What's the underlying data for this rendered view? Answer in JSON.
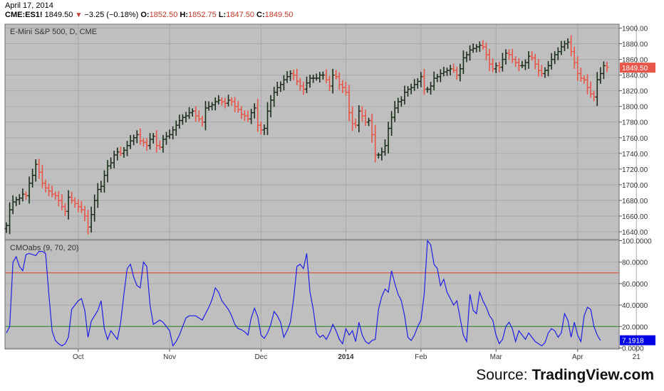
{
  "header": {
    "date": "April 17, 2014",
    "symbol": "CME:ES1!",
    "last": "1849.50",
    "change": "−3.25 (−0.18%)",
    "open_label": "O:",
    "open": "1852.50",
    "high_label": "H:",
    "high": "1852.75",
    "low_label": "L:",
    "low": "1847.50",
    "close_label": "C:",
    "close": "1849.50"
  },
  "source": {
    "prefix": "Source:",
    "brand": "TradingView.com"
  },
  "colors": {
    "up": "#1a2e1a",
    "down": "#e8564a",
    "cmo_line": "#1f1fe6",
    "overbought": "#d84b3d",
    "oversold": "#3a8a3a",
    "panel_bg": "#bfbfbf"
  },
  "chart_data": [
    {
      "type": "ohlc",
      "title": "E-Mini S&P 500, D, CME",
      "ylim": [
        1630,
        1905
      ],
      "y_ticks": [
        1640,
        1660,
        1680,
        1700,
        1720,
        1740,
        1760,
        1780,
        1800,
        1820,
        1840,
        1860,
        1880,
        1900
      ],
      "y_tick_labels": [
        "1640.00",
        "1660.00",
        "1680.00",
        "1700.00",
        "1720.00",
        "1740.00",
        "1760.00",
        "1780.00",
        "1800.00",
        "1820.00",
        "1840.00",
        "1860.00",
        "1880.00",
        "1900.00"
      ],
      "last_price_label": "1849.50",
      "last_price": 1849.5,
      "x_labels": [
        {
          "index": 22,
          "text": "Oct",
          "bold": false
        },
        {
          "index": 50,
          "text": "Nov",
          "bold": false
        },
        {
          "index": 78,
          "text": "Dec",
          "bold": false
        },
        {
          "index": 104,
          "text": "2014",
          "bold": true
        },
        {
          "index": 127,
          "text": "Feb",
          "bold": false
        },
        {
          "index": 150,
          "text": "Mar",
          "bold": false
        },
        {
          "index": 175,
          "text": "Apr",
          "bold": false
        },
        {
          "index": 193,
          "text": "21",
          "bold": false
        }
      ],
      "closes": [
        1648,
        1668,
        1678,
        1681,
        1683,
        1688,
        1686,
        1702,
        1712,
        1726,
        1716,
        1702,
        1696,
        1692,
        1688,
        1686,
        1680,
        1672,
        1666,
        1684,
        1680,
        1676,
        1672,
        1668,
        1660,
        1646,
        1662,
        1680,
        1694,
        1698,
        1712,
        1724,
        1728,
        1738,
        1742,
        1740,
        1744,
        1750,
        1756,
        1760,
        1764,
        1756,
        1754,
        1750,
        1758,
        1762,
        1750,
        1748,
        1758,
        1762,
        1764,
        1770,
        1776,
        1782,
        1786,
        1788,
        1792,
        1794,
        1788,
        1784,
        1780,
        1798,
        1800,
        1802,
        1806,
        1808,
        1806,
        1804,
        1808,
        1806,
        1800,
        1796,
        1790,
        1788,
        1784,
        1792,
        1798,
        1776,
        1770,
        1772,
        1794,
        1808,
        1818,
        1824,
        1828,
        1834,
        1838,
        1842,
        1840,
        1832,
        1826,
        1822,
        1830,
        1836,
        1836,
        1836,
        1840,
        1840,
        1834,
        1826,
        1840,
        1838,
        1828,
        1824,
        1818,
        1792,
        1778,
        1776,
        1794,
        1788,
        1780,
        1782,
        1764,
        1738,
        1738,
        1742,
        1750,
        1772,
        1786,
        1798,
        1806,
        1808,
        1818,
        1822,
        1824,
        1828,
        1832,
        1838,
        1822,
        1822,
        1826,
        1836,
        1838,
        1842,
        1844,
        1846,
        1848,
        1846,
        1840,
        1848,
        1862,
        1866,
        1872,
        1874,
        1876,
        1878,
        1876,
        1866,
        1854,
        1848,
        1852,
        1850,
        1860,
        1868,
        1866,
        1860,
        1856,
        1852,
        1852,
        1856,
        1864,
        1862,
        1854,
        1846,
        1842,
        1846,
        1852,
        1860,
        1866,
        1870,
        1876,
        1880,
        1882,
        1870,
        1856,
        1842,
        1836,
        1834,
        1824,
        1816,
        1812,
        1834,
        1842,
        1852,
        1850
      ]
    },
    {
      "type": "line",
      "title": "CMOabs (9, 70, 20)",
      "ylim": [
        -1,
        101
      ],
      "y_ticks": [
        0,
        20,
        40,
        60,
        80,
        100
      ],
      "y_tick_labels": [
        "0.0000",
        "20.0000",
        "40.0000",
        "60.0000",
        "80.0000",
        "100.0000"
      ],
      "overbought": 70,
      "oversold": 20,
      "last_value_label": "7.1918",
      "last_value": 7.1918,
      "values": [
        14,
        20,
        80,
        85,
        76,
        72,
        87,
        88,
        87,
        86,
        90,
        90,
        88,
        50,
        16,
        7,
        4,
        2,
        4,
        10,
        36,
        40,
        44,
        46,
        35,
        10,
        25,
        30,
        35,
        44,
        18,
        8,
        16,
        12,
        8,
        24,
        50,
        74,
        78,
        66,
        58,
        56,
        80,
        76,
        40,
        22,
        24,
        26,
        24,
        20,
        16,
        2,
        6,
        12,
        20,
        28,
        30,
        30,
        30,
        28,
        26,
        32,
        38,
        45,
        56,
        52,
        44,
        40,
        36,
        30,
        22,
        18,
        17,
        15,
        12,
        28,
        37,
        29,
        12,
        9,
        14,
        22,
        34,
        30,
        24,
        10,
        16,
        24,
        46,
        76,
        78,
        74,
        88,
        52,
        36,
        14,
        10,
        12,
        8,
        14,
        22,
        16,
        8,
        4,
        18,
        12,
        16,
        6,
        24,
        12,
        6,
        4,
        7,
        8,
        36,
        48,
        55,
        52,
        72,
        60,
        50,
        44,
        30,
        10,
        7,
        12,
        20,
        26,
        50,
        100,
        96,
        78,
        74,
        58,
        64,
        52,
        46,
        40,
        44,
        28,
        12,
        6,
        50,
        35,
        32,
        52,
        44,
        38,
        30,
        26,
        12,
        4,
        8,
        20,
        24,
        18,
        6,
        16,
        12,
        8,
        14,
        10,
        6,
        4,
        2,
        5,
        14,
        18,
        16,
        10,
        14,
        32,
        26,
        10,
        24,
        12,
        6,
        30,
        38,
        36,
        20,
        12,
        7
      ]
    }
  ]
}
